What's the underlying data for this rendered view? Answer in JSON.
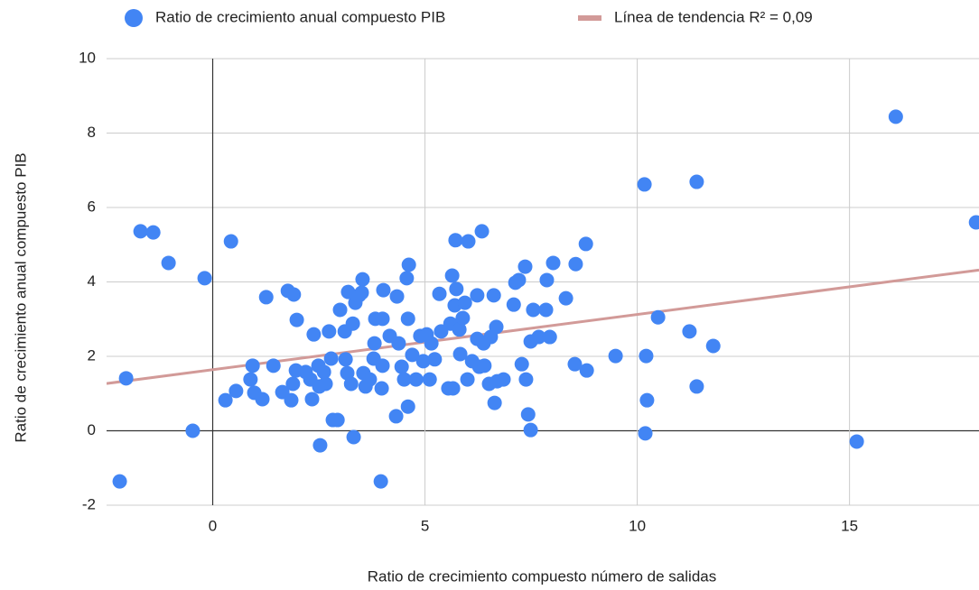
{
  "chart_data": {
    "type": "scatter",
    "x_label": "Ratio de crecimiento compuesto número de salidas",
    "y_label": "Ratio de crecimiento anual compuesto PIB",
    "xlim": [
      -2.5,
      18.05
    ],
    "ylim": [
      -2,
      10
    ],
    "xticks": [
      0,
      5,
      10,
      15
    ],
    "yticks": [
      -2,
      0,
      2,
      4,
      6,
      8,
      10
    ],
    "grid": true,
    "legend": "top",
    "series": [
      {
        "name": "Ratio de crecimiento anual compuesto PIB",
        "color": "#4285f4",
        "x": [
          -2.19,
          -2.04,
          -1.7,
          -1.4,
          -1.04,
          -0.47,
          -0.19,
          0.43,
          0.3,
          0.55,
          0.89,
          0.94,
          0.98,
          1.17,
          1.26,
          1.43,
          1.64,
          1.77,
          1.91,
          1.85,
          1.98,
          1.96,
          1.89,
          2.19,
          2.3,
          2.34,
          2.38,
          2.49,
          2.51,
          2.53,
          2.62,
          2.66,
          2.74,
          2.79,
          2.83,
          2.94,
          3.0,
          3.11,
          3.13,
          3.17,
          3.19,
          3.26,
          3.3,
          3.32,
          3.36,
          3.45,
          3.51,
          3.53,
          3.55,
          3.6,
          3.7,
          3.79,
          3.81,
          3.83,
          3.96,
          4.02,
          4.0,
          4.0,
          3.98,
          4.17,
          4.34,
          4.32,
          4.38,
          4.45,
          4.51,
          4.57,
          4.62,
          4.6,
          4.6,
          4.7,
          4.79,
          4.89,
          4.96,
          5.04,
          5.11,
          5.15,
          5.23,
          5.34,
          5.38,
          5.55,
          5.6,
          5.66,
          5.64,
          5.72,
          5.74,
          5.7,
          5.81,
          5.83,
          5.89,
          5.94,
          6.02,
          6.0,
          6.11,
          6.23,
          6.28,
          6.23,
          6.34,
          6.38,
          6.4,
          6.51,
          6.55,
          6.62,
          6.64,
          6.68,
          6.7,
          6.85,
          7.09,
          7.13,
          7.21,
          7.28,
          7.36,
          7.38,
          7.43,
          7.49,
          7.49,
          7.55,
          7.68,
          7.85,
          7.87,
          7.94,
          8.02,
          8.32,
          8.53,
          8.55,
          8.79,
          8.81,
          9.49,
          10.17,
          10.19,
          10.21,
          10.23,
          10.49,
          11.23,
          11.4,
          11.4,
          11.79,
          15.17,
          16.09,
          17.98
        ],
        "values": [
          -1.36,
          1.41,
          5.36,
          5.33,
          4.51,
          0,
          4.1,
          5.09,
          0.82,
          1.07,
          1.38,
          1.75,
          1.02,
          0.85,
          3.59,
          1.75,
          1.04,
          3.76,
          3.66,
          0.82,
          2.98,
          1.62,
          1.26,
          1.58,
          1.38,
          0.85,
          2.59,
          1.75,
          1.19,
          -0.39,
          1.58,
          1.26,
          2.67,
          1.94,
          0.29,
          0.29,
          3.25,
          2.67,
          1.92,
          1.55,
          3.73,
          1.26,
          2.88,
          -0.17,
          3.44,
          3.64,
          3.71,
          4.07,
          1.55,
          1.19,
          1.38,
          1.94,
          2.35,
          3.01,
          -1.36,
          3.78,
          3.01,
          1.75,
          1.14,
          2.55,
          3.61,
          0.39,
          2.35,
          1.72,
          1.38,
          4.1,
          4.46,
          3.01,
          0.65,
          2.04,
          1.38,
          2.55,
          1.87,
          2.59,
          1.38,
          2.35,
          1.92,
          3.68,
          2.67,
          1.14,
          2.88,
          1.14,
          4.17,
          5.12,
          3.81,
          3.37,
          2.72,
          2.06,
          3.03,
          3.44,
          5.09,
          1.38,
          1.87,
          3.64,
          1.72,
          2.47,
          5.36,
          2.35,
          1.75,
          1.26,
          2.52,
          3.64,
          0.75,
          2.79,
          1.33,
          1.38,
          3.39,
          3.98,
          4.05,
          1.79,
          4.41,
          1.38,
          0.44,
          0.02,
          2.4,
          3.25,
          2.52,
          3.25,
          4.05,
          2.52,
          4.51,
          3.56,
          1.79,
          4.48,
          5.02,
          1.62,
          2.01,
          6.62,
          -0.07,
          2.01,
          0.82,
          3.05,
          2.67,
          6.69,
          1.19,
          2.28,
          -0.29,
          8.44,
          5.6
        ]
      }
    ],
    "trendline": {
      "name": "Línea de tendencia R² = 0,09",
      "color": "#d29a98",
      "x": [
        -2.5,
        18.05
      ],
      "values": [
        1.27,
        4.32
      ]
    }
  }
}
